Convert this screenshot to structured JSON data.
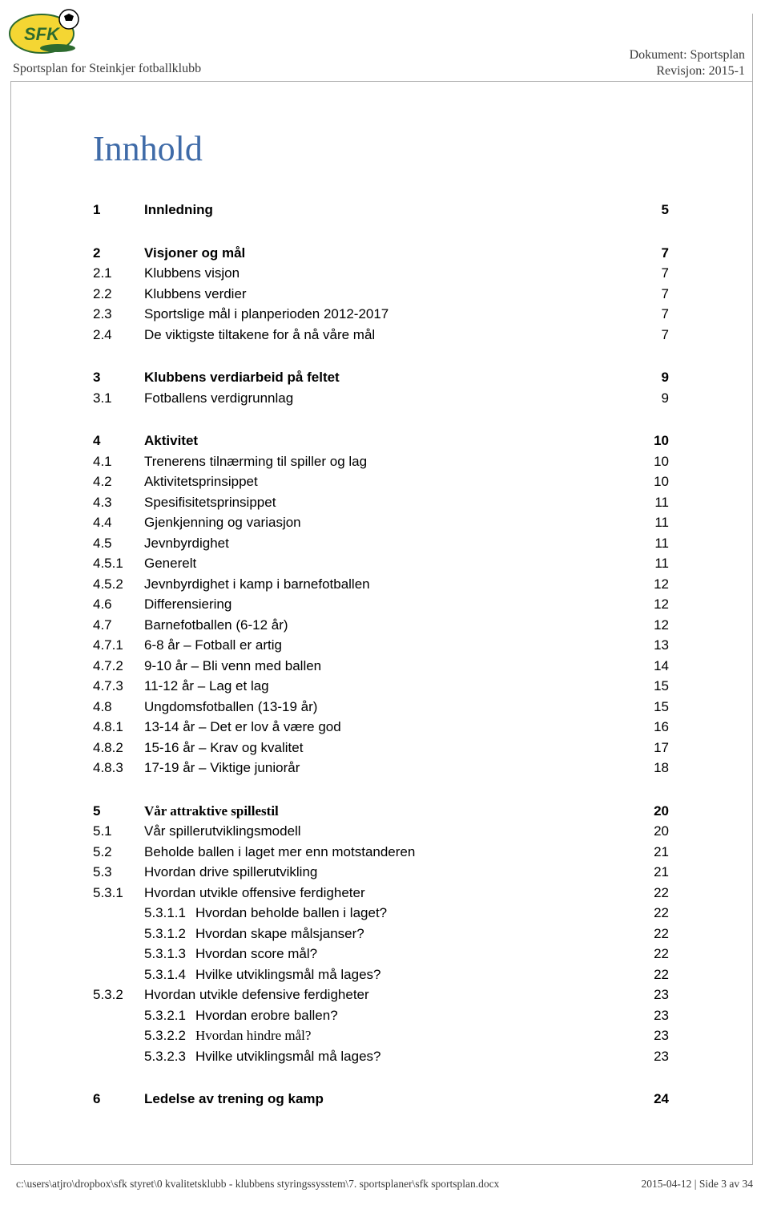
{
  "header": {
    "left": "Sportsplan for Steinkjer fotballklubb",
    "right_line1": "Dokument: Sportsplan",
    "right_line2": "Revisjon: 2015-1"
  },
  "title": "Innhold",
  "colors": {
    "title": "#3f6ba8",
    "border": "#b0b0b0",
    "header_text": "#3a3a3a",
    "body_text": "#000000",
    "background": "#ffffff",
    "logo_yellow": "#f4d633",
    "logo_green": "#2d6b2f"
  },
  "logo": {
    "text": "SFK"
  },
  "toc": [
    {
      "rows": [
        {
          "num": "1",
          "text": "Innledning",
          "page": "5",
          "bold": true
        }
      ]
    },
    {
      "rows": [
        {
          "num": "2",
          "text": "Visjoner og mål",
          "page": "7",
          "bold": true
        },
        {
          "num": "2.1",
          "text": "Klubbens visjon",
          "page": "7"
        },
        {
          "num": "2.2",
          "text": "Klubbens verdier",
          "page": "7"
        },
        {
          "num": "2.3",
          "text": "Sportslige mål i planperioden 2012-2017",
          "page": "7"
        },
        {
          "num": "2.4",
          "text": "De viktigste tiltakene for å nå våre mål",
          "page": "7"
        }
      ]
    },
    {
      "rows": [
        {
          "num": "3",
          "text": "Klubbens verdiarbeid på feltet",
          "page": "9",
          "bold": true
        },
        {
          "num": "3.1",
          "text": "Fotballens verdigrunnlag",
          "page": "9"
        }
      ]
    },
    {
      "rows": [
        {
          "num": "4",
          "text": "Aktivitet",
          "page": "10",
          "bold": true
        },
        {
          "num": "4.1",
          "text": "Trenerens tilnærming til spiller og lag",
          "page": "10"
        },
        {
          "num": "4.2",
          "text": "Aktivitetsprinsippet",
          "page": "10"
        },
        {
          "num": "4.3",
          "text": "Spesifisitetsprinsippet",
          "page": "11"
        },
        {
          "num": "4.4",
          "text": "Gjenkjenning og variasjon",
          "page": "11"
        },
        {
          "num": "4.5",
          "text": "Jevnbyrdighet",
          "page": "11"
        },
        {
          "num": "4.5.1",
          "text": "Generelt",
          "page": "11"
        },
        {
          "num": "4.5.2",
          "text": "Jevnbyrdighet i kamp i barnefotballen",
          "page": "12"
        },
        {
          "num": "4.6",
          "text": "Differensiering",
          "page": "12"
        },
        {
          "num": "4.7",
          "text": "Barnefotballen (6-12 år)",
          "page": "12"
        },
        {
          "num": "4.7.1",
          "text": "6-8 år – Fotball er artig",
          "page": "13"
        },
        {
          "num": "4.7.2",
          "text": "9-10 år – Bli venn med ballen",
          "page": "14"
        },
        {
          "num": "4.7.3",
          "text": "11-12 år – Lag et lag",
          "page": "15"
        },
        {
          "num": "4.8",
          "text": "Ungdomsfotballen (13-19 år)",
          "page": "15"
        },
        {
          "num": "4.8.1",
          "text": "13-14 år – Det er lov å være god",
          "page": "16"
        },
        {
          "num": "4.8.2",
          "text": "15-16 år – Krav og kvalitet",
          "page": "17"
        },
        {
          "num": "4.8.3",
          "text": "17-19 år – Viktige juniorår",
          "page": "18"
        }
      ]
    },
    {
      "rows": [
        {
          "num": "5",
          "text": "Vår attraktive spillestil",
          "page": "20",
          "bold": true,
          "serif": true
        },
        {
          "num": "5.1",
          "text": "Vår spillerutviklingsmodell",
          "page": "20"
        },
        {
          "num": "5.2",
          "text": "Beholde ballen i laget mer enn motstanderen",
          "page": "21"
        },
        {
          "num": "5.3",
          "text": "Hvordan drive spillerutvikling",
          "page": "21"
        },
        {
          "num": "5.3.1",
          "text": "Hvordan utvikle offensive ferdigheter",
          "page": "22"
        },
        {
          "num": "5.3.1.1",
          "text": "Hvordan beholde ballen i laget?",
          "page": "22",
          "indent": true
        },
        {
          "num": "5.3.1.2",
          "text": "Hvordan skape målsjanser?",
          "page": "22",
          "indent": true
        },
        {
          "num": "5.3.1.3",
          "text": "Hvordan score mål?",
          "page": "22",
          "indent": true
        },
        {
          "num": "5.3.1.4",
          "text": "Hvilke utviklingsmål må lages?",
          "page": "22",
          "indent": true
        },
        {
          "num": "5.3.2",
          "text": "Hvordan utvikle defensive ferdigheter",
          "page": "23"
        },
        {
          "num": "5.3.2.1",
          "text": "Hvordan erobre ballen?",
          "page": "23",
          "indent": true
        },
        {
          "num": "5.3.2.2",
          "text": "Hvordan hindre mål?",
          "page": "23",
          "indent": true,
          "serif": true
        },
        {
          "num": "5.3.2.3",
          "text": "Hvilke utviklingsmål må lages?",
          "page": "23",
          "indent": true
        }
      ]
    },
    {
      "rows": [
        {
          "num": "6",
          "text": "Ledelse av trening og kamp",
          "page": "24",
          "bold": true
        }
      ]
    }
  ],
  "footer": {
    "left": "c:\\users\\atjro\\dropbox\\sfk styret\\0 kvalitetsklubb - klubbens styringssysstem\\7. sportsplaner\\sfk sportsplan.docx",
    "right": "2015-04-12 | Side 3 av 34"
  }
}
